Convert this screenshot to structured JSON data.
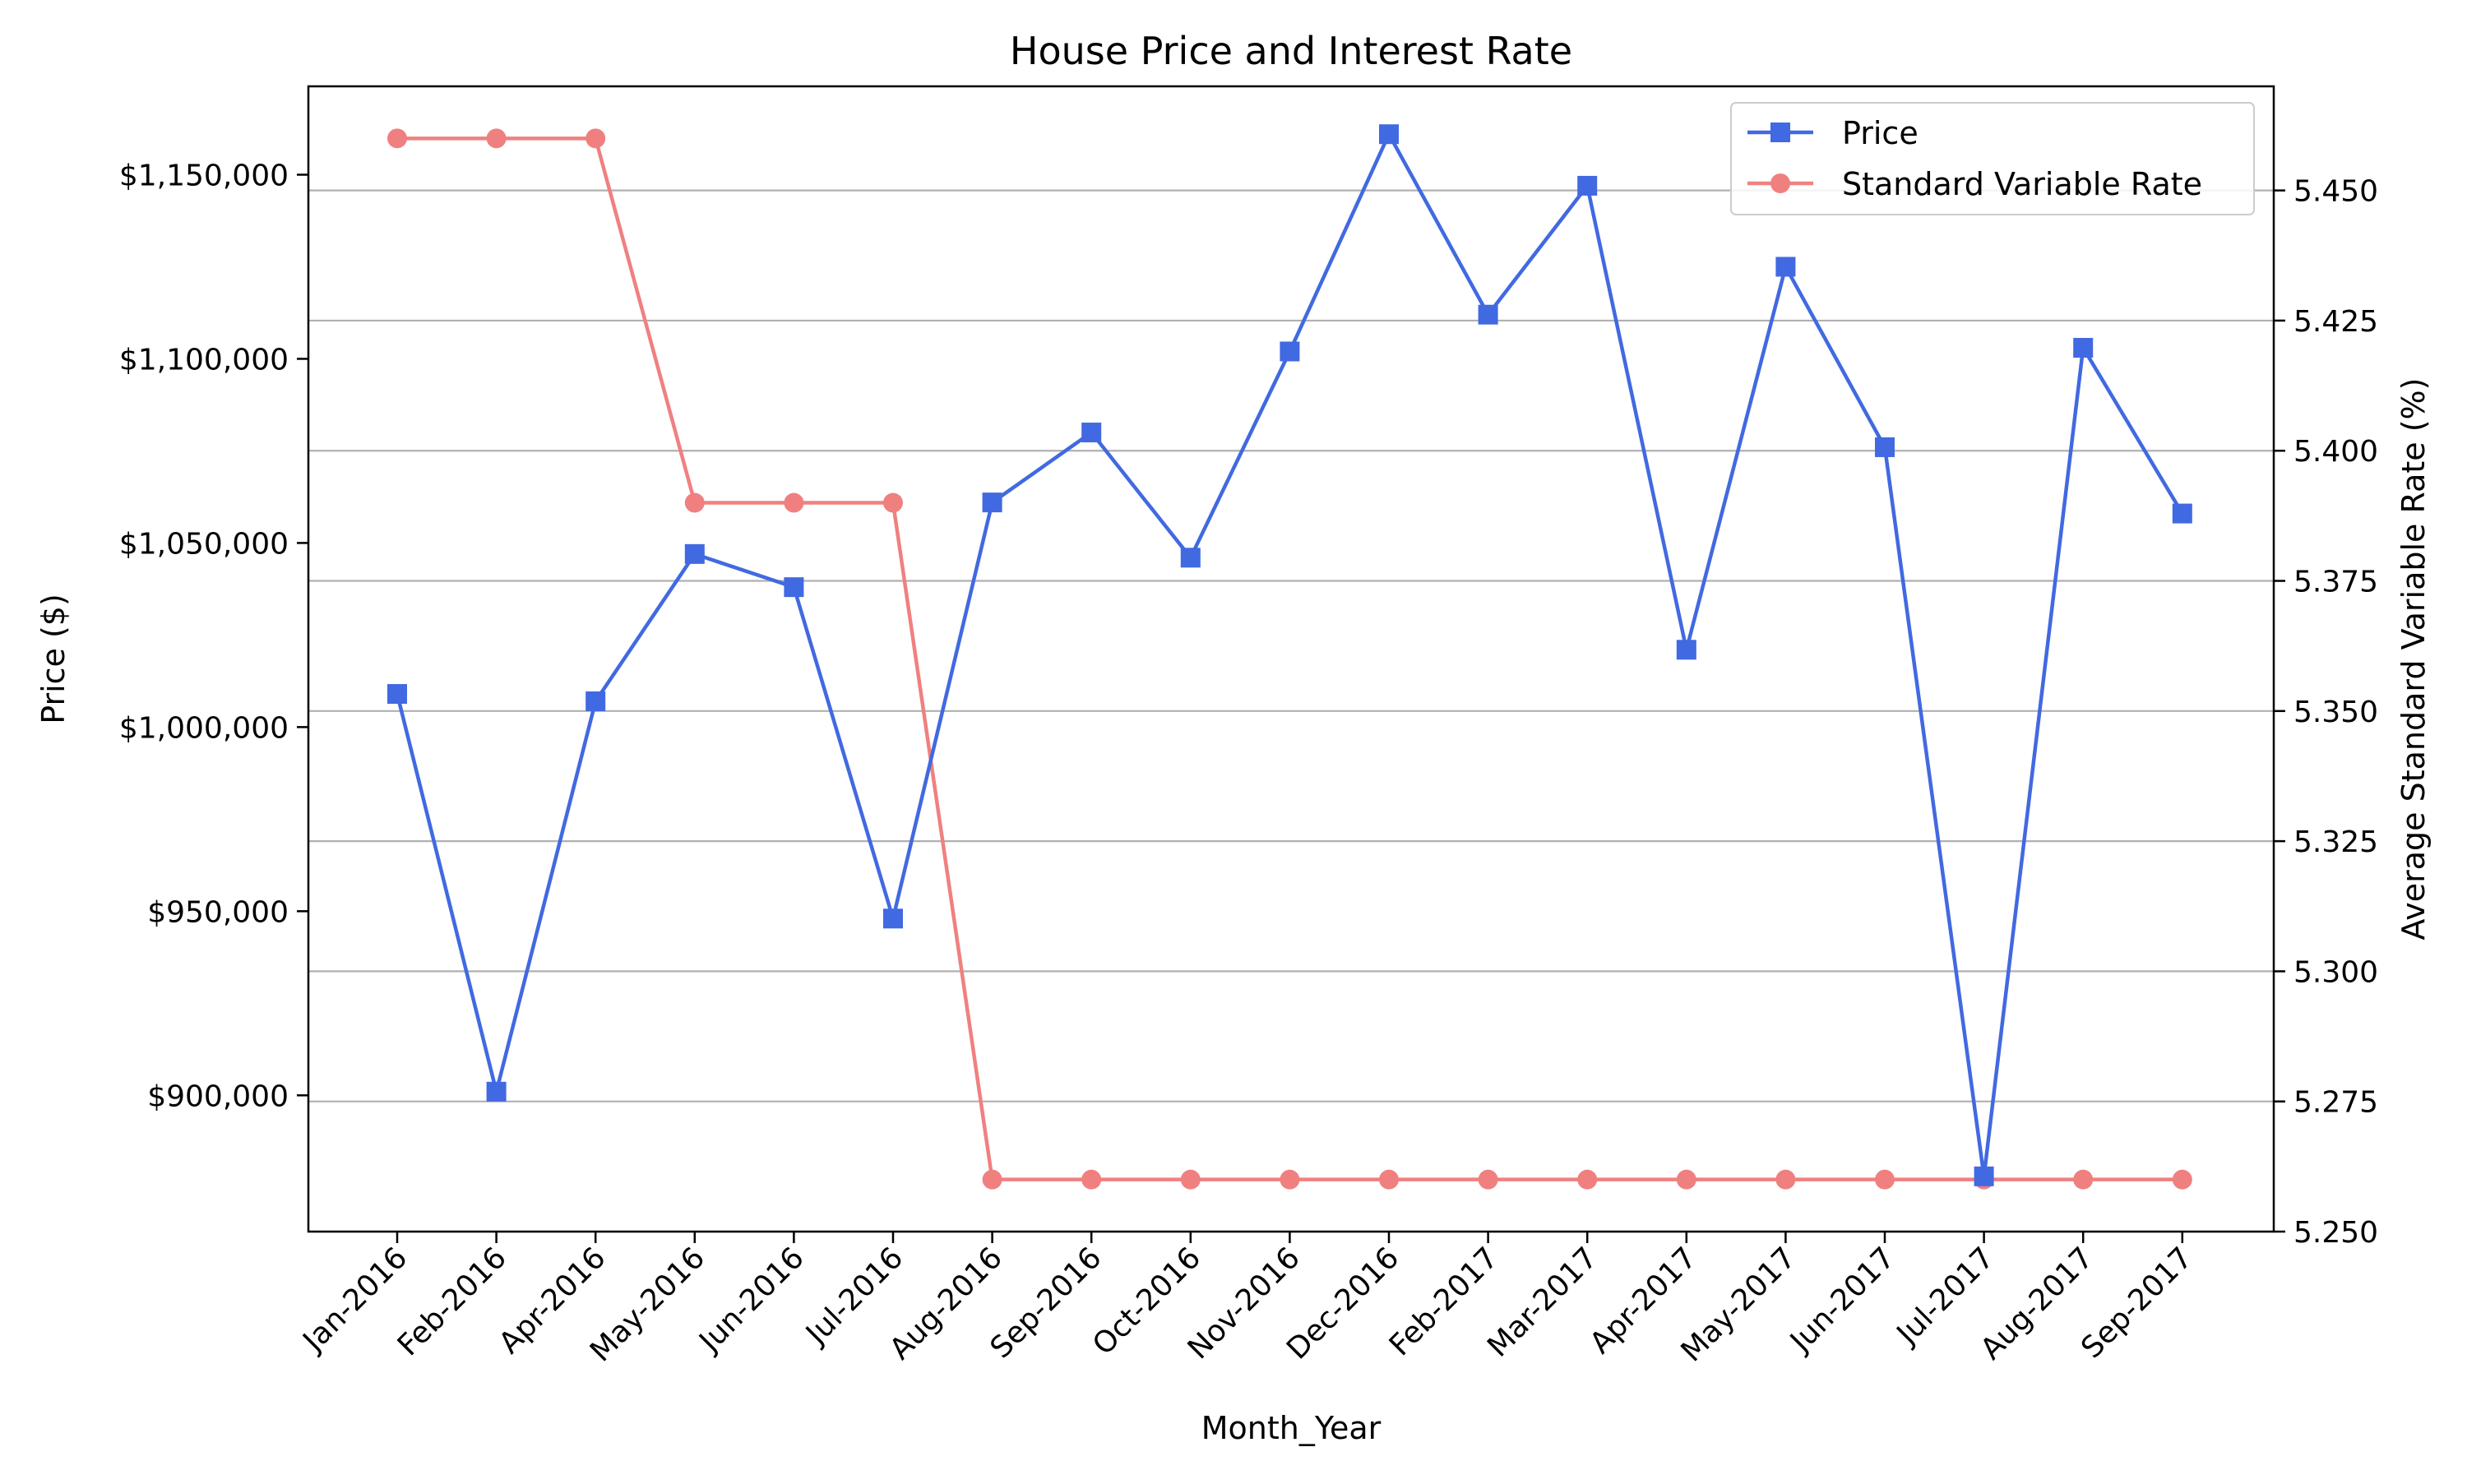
{
  "chart_data": {
    "type": "line",
    "title": "House Price and Interest Rate",
    "xlabel": "Month_Year",
    "ylabel_left": "Price ($)",
    "ylabel_right": "Average Standard Variable Rate (%)",
    "categories": [
      "Jan-2016",
      "Feb-2016",
      "Apr-2016",
      "May-2016",
      "Jun-2016",
      "Jul-2016",
      "Aug-2016",
      "Sep-2016",
      "Oct-2016",
      "Nov-2016",
      "Dec-2016",
      "Feb-2017",
      "Mar-2017",
      "Apr-2017",
      "May-2017",
      "Jun-2017",
      "Jul-2017",
      "Aug-2017",
      "Sep-2017"
    ],
    "ylim_left": [
      863000,
      1174000
    ],
    "ylim_right": [
      5.25,
      5.47
    ],
    "yticks_left": [
      900000,
      950000,
      1000000,
      1050000,
      1100000,
      1150000
    ],
    "yticks_left_labels": [
      "$900,000",
      "$950,000",
      "$1,000,000",
      "$1,050,000",
      "$1,100,000",
      "$1,150,000"
    ],
    "yticks_right": [
      5.25,
      5.275,
      5.3,
      5.325,
      5.35,
      5.375,
      5.4,
      5.425,
      5.45
    ],
    "yticks_right_labels": [
      "5.250",
      "5.275",
      "5.300",
      "5.325",
      "5.350",
      "5.375",
      "5.400",
      "5.425",
      "5.450"
    ],
    "grid": "horizontal gridlines at right-axis ticks",
    "legend_position": "upper right",
    "series": [
      {
        "name": "Price",
        "axis": "left",
        "marker": "square",
        "color": "#4169e1",
        "values": [
          1009000,
          901000,
          1007000,
          1047000,
          1038000,
          948000,
          1061000,
          1080000,
          1046000,
          1102000,
          1161000,
          1112000,
          1147000,
          1021000,
          1125000,
          1076000,
          878000,
          1103000,
          1058000
        ]
      },
      {
        "name": "Standard Variable Rate",
        "axis": "right",
        "marker": "circle",
        "color": "#f08080",
        "values": [
          5.46,
          5.46,
          5.46,
          5.39,
          5.39,
          5.39,
          5.26,
          5.26,
          5.26,
          5.26,
          5.26,
          5.26,
          5.26,
          5.26,
          5.26,
          5.26,
          5.26,
          5.26,
          5.26
        ]
      }
    ]
  }
}
